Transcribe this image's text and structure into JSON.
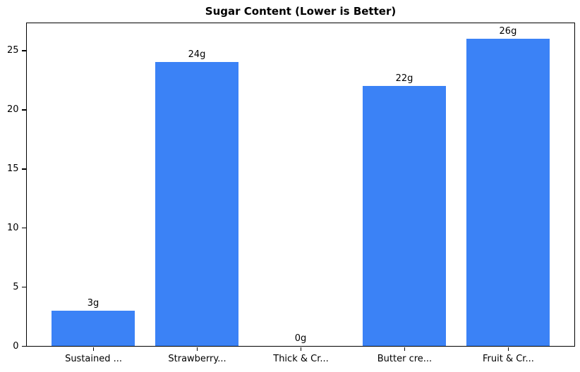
{
  "chart_data": {
    "type": "bar",
    "title": "Sugar Content (Lower is Better)",
    "categories": [
      "Sustained ...",
      "Strawberry...",
      "Thick & Cr...",
      "Butter cre...",
      "Fruit & Cr..."
    ],
    "values": [
      3,
      24,
      0,
      22,
      26
    ],
    "bar_labels": [
      "3g",
      "24g",
      "0g",
      "22g",
      "26g"
    ],
    "yticks": [
      0,
      5,
      10,
      15,
      20,
      25
    ],
    "ytick_labels": [
      "0",
      "5",
      "10",
      "15",
      "20",
      "25"
    ],
    "ylim": [
      0,
      27.3
    ],
    "xlabel": "",
    "ylabel": "",
    "bar_width_fraction": 0.8,
    "grid": false,
    "legend": null,
    "colors": {
      "bar": "#3b82f6",
      "text": "#000000",
      "background": "#ffffff",
      "axis": "#000000"
    }
  }
}
